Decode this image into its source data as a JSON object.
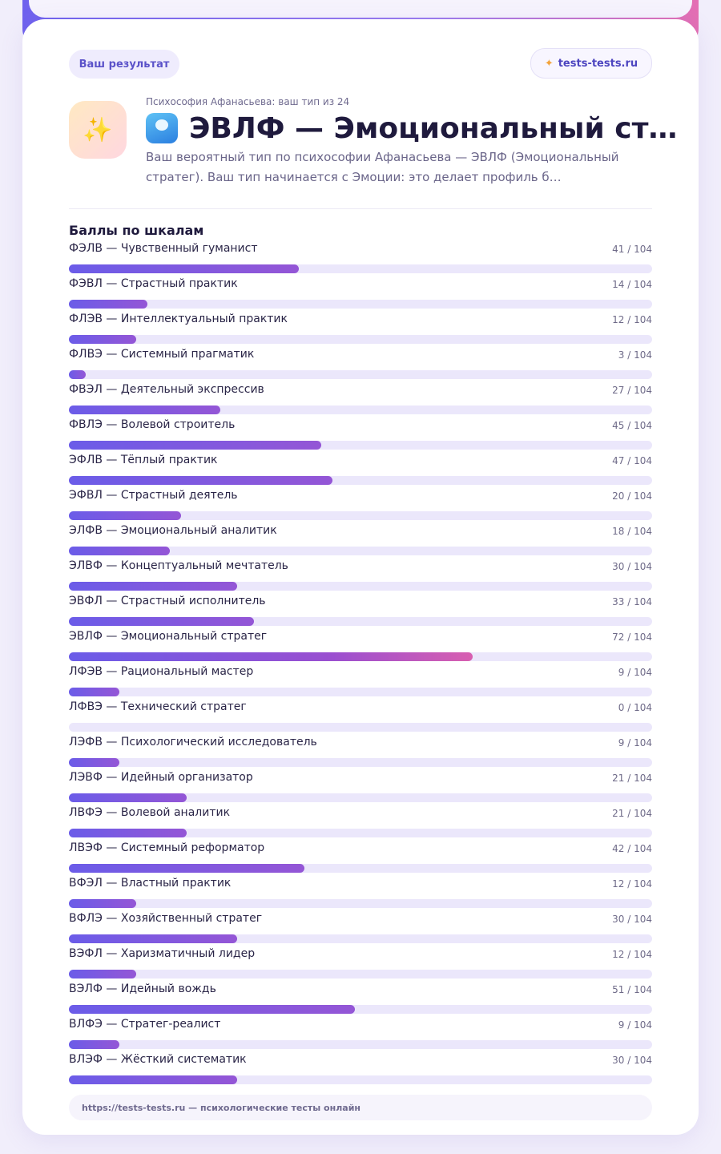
{
  "header": {
    "result_label": "Ваш результат",
    "site_label": "tests-tests.ru",
    "site_icon": "sparkle-icon"
  },
  "hero": {
    "logo_icon": "sparkles-icon",
    "subtitle": "Психософия Афанасьева: ваш тип из 24",
    "title": "ЭВЛФ — Эмоциональный ст…",
    "title_icon": "wave-icon",
    "description": "Ваш вероятный тип по психософии Афанасьева — ЭВЛФ (Эмоциональный стратег). Ваш тип начинается с Эмоции: это делает профиль б…"
  },
  "scores": {
    "title": "Баллы по шкалам",
    "max": 104,
    "items": [
      {
        "label": "ФЭЛВ — Чувственный гуманист",
        "value": 41,
        "display": "41 / 104"
      },
      {
        "label": "ФЭВЛ — Страстный практик",
        "value": 14,
        "display": "14 / 104"
      },
      {
        "label": "ФЛЭВ — Интеллектуальный практик",
        "value": 12,
        "display": "12 / 104"
      },
      {
        "label": "ФЛВЭ — Системный прагматик",
        "value": 3,
        "display": "3 / 104"
      },
      {
        "label": "ФВЭЛ — Деятельный экспрессив",
        "value": 27,
        "display": "27 / 104"
      },
      {
        "label": "ФВЛЭ — Волевой строитель",
        "value": 45,
        "display": "45 / 104"
      },
      {
        "label": "ЭФЛВ — Тёплый практик",
        "value": 47,
        "display": "47 / 104"
      },
      {
        "label": "ЭФВЛ — Страстный деятель",
        "value": 20,
        "display": "20 / 104"
      },
      {
        "label": "ЭЛФВ — Эмоциональный аналитик",
        "value": 18,
        "display": "18 / 104"
      },
      {
        "label": "ЭЛВФ — Концептуальный мечтатель",
        "value": 30,
        "display": "30 / 104"
      },
      {
        "label": "ЭВФЛ — Страстный исполнитель",
        "value": 33,
        "display": "33 / 104"
      },
      {
        "label": "ЭВЛФ — Эмоциональный стратег",
        "value": 72,
        "display": "72 / 104",
        "top": true
      },
      {
        "label": "ЛФЭВ — Рациональный мастер",
        "value": 9,
        "display": "9 / 104"
      },
      {
        "label": "ЛФВЭ — Технический стратег",
        "value": 0,
        "display": "0 / 104"
      },
      {
        "label": "ЛЭФВ — Психологический исследователь",
        "value": 9,
        "display": "9 / 104"
      },
      {
        "label": "ЛЭВФ — Идейный организатор",
        "value": 21,
        "display": "21 / 104"
      },
      {
        "label": "ЛВФЭ — Волевой аналитик",
        "value": 21,
        "display": "21 / 104"
      },
      {
        "label": "ЛВЭФ — Системный реформатор",
        "value": 42,
        "display": "42 / 104"
      },
      {
        "label": "ВФЭЛ — Властный практик",
        "value": 12,
        "display": "12 / 104"
      },
      {
        "label": "ВФЛЭ — Хозяйственный стратег",
        "value": 30,
        "display": "30 / 104"
      },
      {
        "label": "ВЭФЛ — Харизматичный лидер",
        "value": 12,
        "display": "12 / 104"
      },
      {
        "label": "ВЭЛФ — Идейный вождь",
        "value": 51,
        "display": "51 / 104"
      },
      {
        "label": "ВЛФЭ — Стратег-реалист",
        "value": 9,
        "display": "9 / 104"
      },
      {
        "label": "ВЛЭФ — Жёсткий систематик",
        "value": 30,
        "display": "30 / 104"
      }
    ]
  },
  "footer": {
    "text": "https://tests-tests.ru — психологические тесты онлайн"
  },
  "colors": {
    "accent": "#6b5ce8",
    "accent_pink": "#d85fb0",
    "track": "#ebe7fb"
  }
}
